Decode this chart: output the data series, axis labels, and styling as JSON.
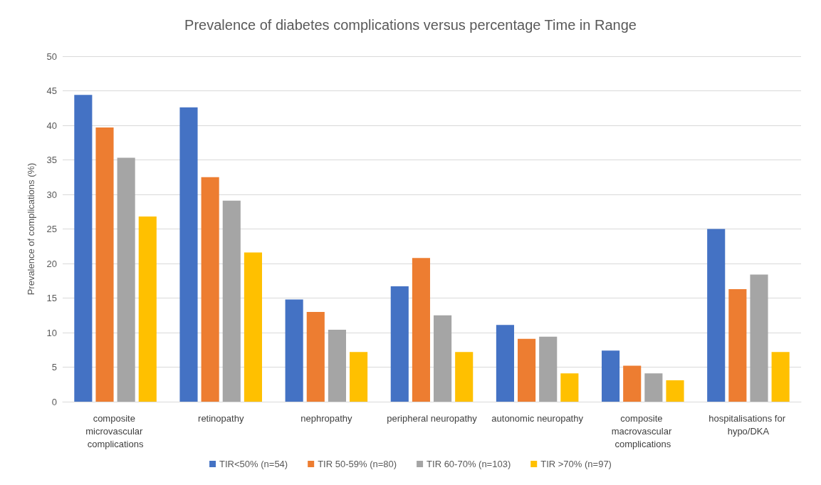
{
  "chart_data": {
    "type": "bar",
    "title": "Prevalence of diabetes complications versus percentage Time in Range",
    "ylabel": "Prevalence of complications (%)",
    "categories": [
      "composite microvascular complications",
      "retinopathy",
      "nephropathy",
      "peripheral neuropathy",
      "autonomic neuropathy",
      "composite macrovascular complications",
      "hospitalisations for hypo/DKA"
    ],
    "series": [
      {
        "name": "TIR<50% (n=54)",
        "color": "#4472c4",
        "values": [
          44.4,
          42.6,
          14.8,
          16.7,
          11.1,
          7.4,
          25.0
        ]
      },
      {
        "name": "TIR 50-59% (n=80)",
        "color": "#ed7d31",
        "values": [
          39.7,
          32.5,
          13.0,
          20.8,
          9.1,
          5.2,
          16.3
        ]
      },
      {
        "name": "TIR 60-70% (n=103)",
        "color": "#a5a5a5",
        "values": [
          35.3,
          29.1,
          10.4,
          12.5,
          9.4,
          4.1,
          18.4
        ]
      },
      {
        "name": "TIR >70% (n=97)",
        "color": "#ffc000",
        "values": [
          26.8,
          21.6,
          7.2,
          7.2,
          4.1,
          3.1,
          7.2
        ]
      }
    ],
    "ylim": [
      0,
      50
    ],
    "yticks": [
      0,
      5,
      10,
      15,
      20,
      25,
      30,
      35,
      40,
      45,
      50
    ],
    "grid": "y",
    "legend": "bottom"
  }
}
